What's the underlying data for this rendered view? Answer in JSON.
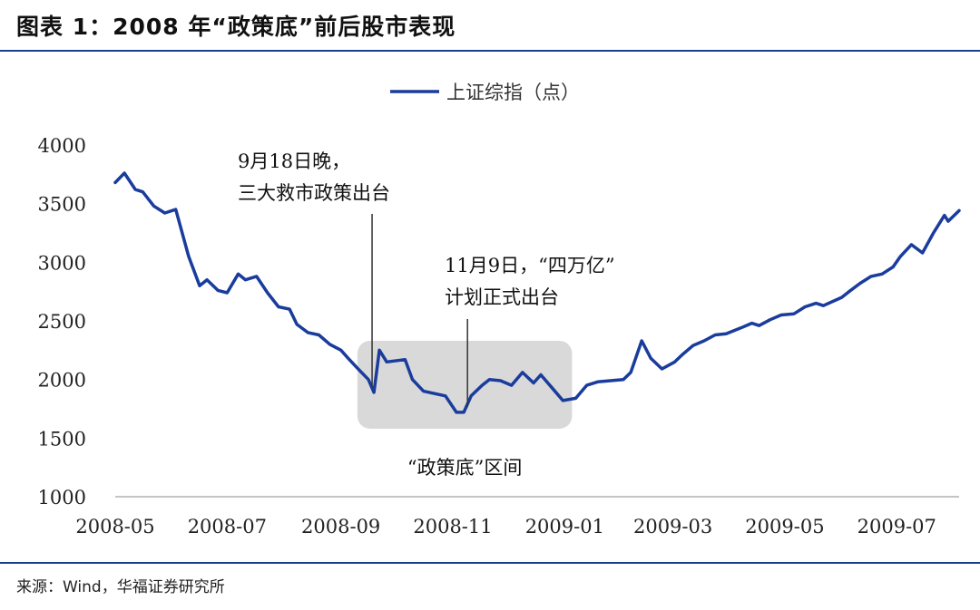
{
  "title": "图表 1：2008 年“政策底”前后股市表现",
  "source": "来源：Wind，华福证券研究所",
  "colors": {
    "series": "#1a3c9c",
    "highlight_fill": "#d9d9d9",
    "rule": "#1a3f8f"
  },
  "chart_data": {
    "type": "line",
    "title": "",
    "xlabel": "",
    "ylabel": "",
    "ylim": [
      1000,
      4000
    ],
    "yticks": [
      1000,
      1500,
      2000,
      2500,
      3000,
      3500,
      4000
    ],
    "xticks": [
      "2008-05",
      "2008-07",
      "2008-09",
      "2008-11",
      "2009-01",
      "2009-03",
      "2009-05",
      "2009-07"
    ],
    "legend": {
      "position": "top-center",
      "entries": [
        "上证综指（点）"
      ]
    },
    "grid": false,
    "series": [
      {
        "name": "上证综指（点）",
        "x": [
          "2008-05-01",
          "2008-05-06",
          "2008-05-12",
          "2008-05-16",
          "2008-05-22",
          "2008-05-28",
          "2008-06-03",
          "2008-06-10",
          "2008-06-16",
          "2008-06-20",
          "2008-06-26",
          "2008-07-01",
          "2008-07-07",
          "2008-07-11",
          "2008-07-17",
          "2008-07-23",
          "2008-07-29",
          "2008-08-04",
          "2008-08-08",
          "2008-08-14",
          "2008-08-20",
          "2008-08-26",
          "2008-09-01",
          "2008-09-05",
          "2008-09-11",
          "2008-09-16",
          "2008-09-19",
          "2008-09-22",
          "2008-09-26",
          "2008-10-06",
          "2008-10-10",
          "2008-10-16",
          "2008-10-22",
          "2008-10-28",
          "2008-11-03",
          "2008-11-07",
          "2008-11-11",
          "2008-11-17",
          "2008-11-21",
          "2008-11-27",
          "2008-12-03",
          "2008-12-09",
          "2008-12-15",
          "2008-12-19",
          "2008-12-25",
          "2008-12-31",
          "2009-01-07",
          "2009-01-13",
          "2009-01-19",
          "2009-02-02",
          "2009-02-06",
          "2009-02-12",
          "2009-02-17",
          "2009-02-23",
          "2009-03-02",
          "2009-03-06",
          "2009-03-12",
          "2009-03-18",
          "2009-03-24",
          "2009-03-30",
          "2009-04-07",
          "2009-04-13",
          "2009-04-17",
          "2009-04-23",
          "2009-04-29",
          "2009-05-06",
          "2009-05-12",
          "2009-05-18",
          "2009-05-22",
          "2009-06-01",
          "2009-06-05",
          "2009-06-11",
          "2009-06-17",
          "2009-06-23",
          "2009-06-29",
          "2009-07-03",
          "2009-07-09",
          "2009-07-15",
          "2009-07-21",
          "2009-07-27",
          "2009-07-29",
          "2009-08-04"
        ],
        "values": [
          3680,
          3760,
          3620,
          3600,
          3480,
          3420,
          3450,
          3050,
          2800,
          2850,
          2760,
          2740,
          2900,
          2850,
          2880,
          2740,
          2620,
          2600,
          2470,
          2400,
          2380,
          2300,
          2250,
          2180,
          2080,
          2000,
          1890,
          2250,
          2150,
          2170,
          2000,
          1900,
          1880,
          1860,
          1720,
          1720,
          1860,
          1950,
          2000,
          1990,
          1950,
          2060,
          1970,
          2040,
          1930,
          1820,
          1840,
          1950,
          1980,
          2000,
          2060,
          2330,
          2180,
          2090,
          2150,
          2210,
          2290,
          2330,
          2380,
          2390,
          2440,
          2480,
          2460,
          2510,
          2550,
          2560,
          2620,
          2650,
          2630,
          2700,
          2750,
          2820,
          2880,
          2900,
          2960,
          3050,
          3150,
          3080,
          3250,
          3400,
          3350,
          3440
        ]
      }
    ],
    "highlight_region": {
      "label": "“政策底”区间",
      "x_start": "2008-09-10",
      "x_end": "2009-01-05",
      "y_range": [
        1580,
        2330
      ]
    },
    "annotations": [
      {
        "lines": [
          "9月18日晚，",
          "三大救市政策出台"
        ],
        "x": "2008-09-18"
      },
      {
        "lines": [
          "11月9日，“四万亿”",
          "计划正式出台"
        ],
        "x": "2008-11-09"
      }
    ]
  }
}
